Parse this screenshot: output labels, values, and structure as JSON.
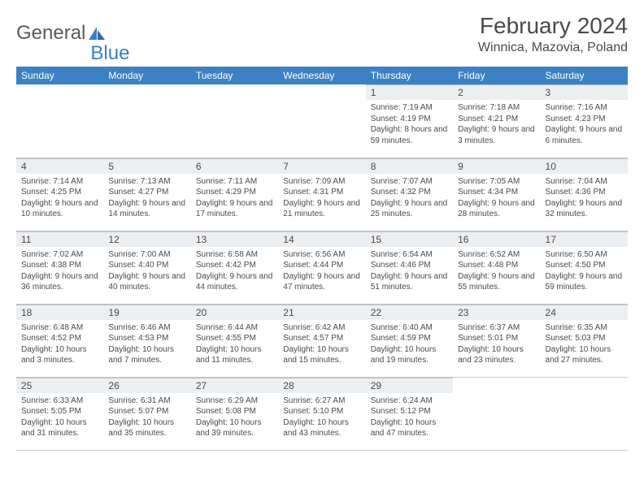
{
  "logo": {
    "part1": "General",
    "part2": "Blue"
  },
  "title": "February 2024",
  "location": "Winnica, Mazovia, Poland",
  "colors": {
    "header_bg": "#3b82c4",
    "header_text": "#ffffff",
    "daynum_bg": "#eceff1",
    "body_text": "#4a4a4a",
    "border": "#c8c8c8",
    "logo_blue": "#3b7fc4"
  },
  "dayNames": [
    "Sunday",
    "Monday",
    "Tuesday",
    "Wednesday",
    "Thursday",
    "Friday",
    "Saturday"
  ],
  "firstDayIndex": 4,
  "daysInMonth": 29,
  "days": {
    "1": {
      "sunrise": "7:19 AM",
      "sunset": "4:19 PM",
      "daylight": "8 hours and 59 minutes."
    },
    "2": {
      "sunrise": "7:18 AM",
      "sunset": "4:21 PM",
      "daylight": "9 hours and 3 minutes."
    },
    "3": {
      "sunrise": "7:16 AM",
      "sunset": "4:23 PM",
      "daylight": "9 hours and 6 minutes."
    },
    "4": {
      "sunrise": "7:14 AM",
      "sunset": "4:25 PM",
      "daylight": "9 hours and 10 minutes."
    },
    "5": {
      "sunrise": "7:13 AM",
      "sunset": "4:27 PM",
      "daylight": "9 hours and 14 minutes."
    },
    "6": {
      "sunrise": "7:11 AM",
      "sunset": "4:29 PM",
      "daylight": "9 hours and 17 minutes."
    },
    "7": {
      "sunrise": "7:09 AM",
      "sunset": "4:31 PM",
      "daylight": "9 hours and 21 minutes."
    },
    "8": {
      "sunrise": "7:07 AM",
      "sunset": "4:32 PM",
      "daylight": "9 hours and 25 minutes."
    },
    "9": {
      "sunrise": "7:05 AM",
      "sunset": "4:34 PM",
      "daylight": "9 hours and 28 minutes."
    },
    "10": {
      "sunrise": "7:04 AM",
      "sunset": "4:36 PM",
      "daylight": "9 hours and 32 minutes."
    },
    "11": {
      "sunrise": "7:02 AM",
      "sunset": "4:38 PM",
      "daylight": "9 hours and 36 minutes."
    },
    "12": {
      "sunrise": "7:00 AM",
      "sunset": "4:40 PM",
      "daylight": "9 hours and 40 minutes."
    },
    "13": {
      "sunrise": "6:58 AM",
      "sunset": "4:42 PM",
      "daylight": "9 hours and 44 minutes."
    },
    "14": {
      "sunrise": "6:56 AM",
      "sunset": "4:44 PM",
      "daylight": "9 hours and 47 minutes."
    },
    "15": {
      "sunrise": "6:54 AM",
      "sunset": "4:46 PM",
      "daylight": "9 hours and 51 minutes."
    },
    "16": {
      "sunrise": "6:52 AM",
      "sunset": "4:48 PM",
      "daylight": "9 hours and 55 minutes."
    },
    "17": {
      "sunrise": "6:50 AM",
      "sunset": "4:50 PM",
      "daylight": "9 hours and 59 minutes."
    },
    "18": {
      "sunrise": "6:48 AM",
      "sunset": "4:52 PM",
      "daylight": "10 hours and 3 minutes."
    },
    "19": {
      "sunrise": "6:46 AM",
      "sunset": "4:53 PM",
      "daylight": "10 hours and 7 minutes."
    },
    "20": {
      "sunrise": "6:44 AM",
      "sunset": "4:55 PM",
      "daylight": "10 hours and 11 minutes."
    },
    "21": {
      "sunrise": "6:42 AM",
      "sunset": "4:57 PM",
      "daylight": "10 hours and 15 minutes."
    },
    "22": {
      "sunrise": "6:40 AM",
      "sunset": "4:59 PM",
      "daylight": "10 hours and 19 minutes."
    },
    "23": {
      "sunrise": "6:37 AM",
      "sunset": "5:01 PM",
      "daylight": "10 hours and 23 minutes."
    },
    "24": {
      "sunrise": "6:35 AM",
      "sunset": "5:03 PM",
      "daylight": "10 hours and 27 minutes."
    },
    "25": {
      "sunrise": "6:33 AM",
      "sunset": "5:05 PM",
      "daylight": "10 hours and 31 minutes."
    },
    "26": {
      "sunrise": "6:31 AM",
      "sunset": "5:07 PM",
      "daylight": "10 hours and 35 minutes."
    },
    "27": {
      "sunrise": "6:29 AM",
      "sunset": "5:08 PM",
      "daylight": "10 hours and 39 minutes."
    },
    "28": {
      "sunrise": "6:27 AM",
      "sunset": "5:10 PM",
      "daylight": "10 hours and 43 minutes."
    },
    "29": {
      "sunrise": "6:24 AM",
      "sunset": "5:12 PM",
      "daylight": "10 hours and 47 minutes."
    }
  }
}
